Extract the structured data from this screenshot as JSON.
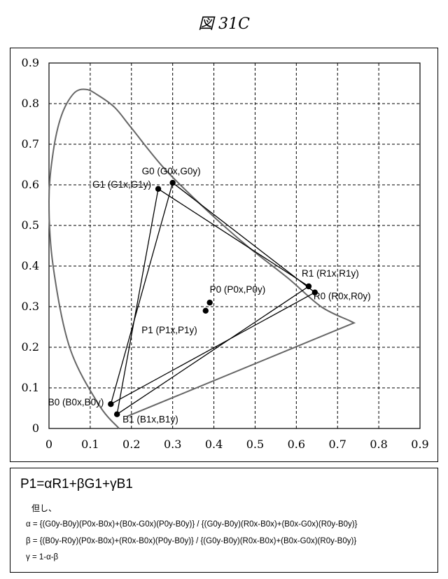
{
  "figure_title": "図 31C",
  "chart_data": {
    "type": "scatter",
    "title": "",
    "xlabel": "",
    "ylabel": "",
    "xlim": [
      0,
      0.9
    ],
    "ylim": [
      0,
      0.9
    ],
    "x_ticks": [
      "0",
      "0.1",
      "0.2",
      "0.3",
      "0.4",
      "0.5",
      "0.6",
      "0.7",
      "0.8",
      "0.9"
    ],
    "y_ticks": [
      "0",
      "0.1",
      "0.2",
      "0.3",
      "0.4",
      "0.5",
      "0.6",
      "0.7",
      "0.8",
      "0.9"
    ],
    "grid": true,
    "locus": [
      [
        0.17,
        0.0
      ],
      [
        0.12,
        0.06
      ],
      [
        0.05,
        0.2
      ],
      [
        0.01,
        0.4
      ],
      [
        0.0,
        0.56
      ],
      [
        0.01,
        0.68
      ],
      [
        0.03,
        0.77
      ],
      [
        0.06,
        0.825
      ],
      [
        0.09,
        0.835
      ],
      [
        0.12,
        0.82
      ],
      [
        0.16,
        0.79
      ],
      [
        0.2,
        0.74
      ],
      [
        0.28,
        0.64
      ],
      [
        0.38,
        0.54
      ],
      [
        0.48,
        0.45
      ],
      [
        0.58,
        0.37
      ],
      [
        0.66,
        0.3
      ],
      [
        0.73,
        0.265
      ],
      [
        0.74,
        0.26
      ],
      [
        0.19,
        0.03
      ]
    ],
    "points": [
      {
        "label": "G0 (G0x,G0y)",
        "x": 0.3,
        "y": 0.605
      },
      {
        "label": "G1 (G1x,G1y)",
        "x": 0.265,
        "y": 0.59
      },
      {
        "label": "R1 (R1x,R1y)",
        "x": 0.63,
        "y": 0.35
      },
      {
        "label": "R0 (R0x,R0y)",
        "x": 0.645,
        "y": 0.335
      },
      {
        "label": "P0 (P0x,P0y)",
        "x": 0.39,
        "y": 0.31
      },
      {
        "label": "P1 (P1x,P1y)",
        "x": 0.38,
        "y": 0.29
      },
      {
        "label": "B0 (B0x,B0y)",
        "x": 0.15,
        "y": 0.06
      },
      {
        "label": "B1 (B1x,B1y)",
        "x": 0.165,
        "y": 0.035
      }
    ],
    "triangles": [
      {
        "vertices": [
          [
            0.3,
            0.605
          ],
          [
            0.645,
            0.335
          ],
          [
            0.15,
            0.06
          ]
        ]
      },
      {
        "vertices": [
          [
            0.265,
            0.59
          ],
          [
            0.63,
            0.35
          ],
          [
            0.165,
            0.035
          ]
        ]
      }
    ]
  },
  "formula": {
    "main": "P1=αR1+βG1+γB1",
    "note": "但し、",
    "alpha": "α = {(G0y-B0y)(P0x-B0x)+(B0x-G0x)(P0y-B0y)} / {(G0y-B0y)(R0x-B0x)+(B0x-G0x)(R0y-B0y)}",
    "beta": "β = {(B0y-R0y)(P0x-B0x)+(R0x-B0x)(P0y-B0y)} / {(G0y-B0y)(R0x-B0x)+(B0x-G0x)(R0y-B0y)}",
    "gamma": "γ = 1-α-β"
  }
}
